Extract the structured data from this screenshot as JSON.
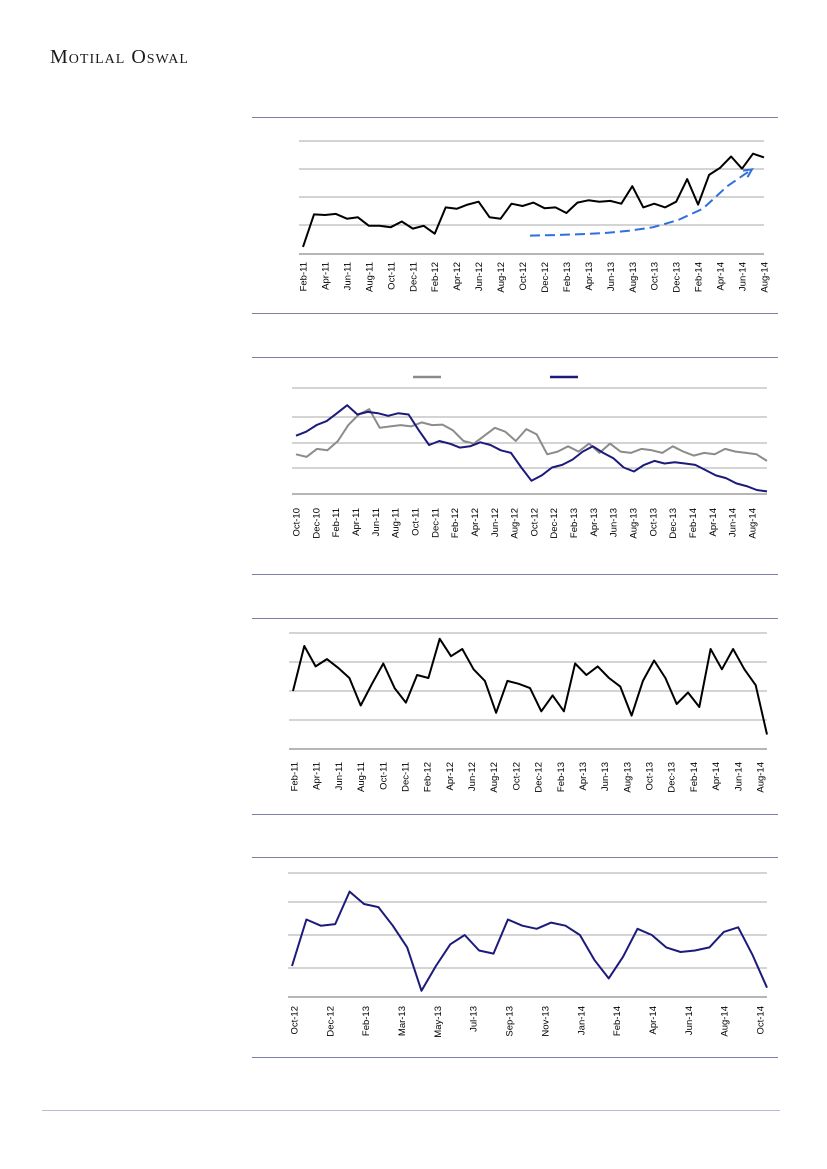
{
  "header": {
    "brand": "Motilal Oswal"
  },
  "colors": {
    "rule": "#7a7fa8",
    "grid": "#a9a9a9",
    "black_line": "#000000",
    "navy_line": "#1c1a7a",
    "grey_line": "#8c8c8c",
    "trend_arrow": "#2f6fe0"
  },
  "chart_data": [
    {
      "type": "line",
      "x_ticks": [
        "Feb-11",
        "Apr-11",
        "Jun-11",
        "Aug-11",
        "Oct-11",
        "Dec-11",
        "Feb-12",
        "Apr-12",
        "Jun-12",
        "Aug-12",
        "Oct-12",
        "Dec-12",
        "Feb-13",
        "Apr-13",
        "Jun-13",
        "Aug-13",
        "Oct-13",
        "Dec-13",
        "Feb-14",
        "Apr-14",
        "Jun-14",
        "Aug-14"
      ],
      "grid": true,
      "ylim": [
        0,
        4
      ],
      "series": [
        {
          "values": [
            0.25,
            1.4,
            1.38,
            1.42,
            1.25,
            1.3,
            1.0,
            1.0,
            0.95,
            1.15,
            0.9,
            1.0,
            0.72,
            1.65,
            1.6,
            1.75,
            1.85,
            1.3,
            1.25,
            1.78,
            1.7,
            1.82,
            1.62,
            1.65,
            1.45,
            1.82,
            1.9,
            1.85,
            1.88,
            1.78,
            2.4,
            1.65,
            1.78,
            1.65,
            1.85,
            2.65,
            1.75,
            2.8,
            3.05,
            3.45,
            3.02,
            3.55,
            3.42
          ]
        },
        {
          "style": "dashed-arrow",
          "values": [
            0.65,
            0.67,
            0.7,
            0.74,
            0.82,
            0.95,
            1.2,
            1.6,
            2.4,
            3.0
          ]
        }
      ]
    },
    {
      "type": "line",
      "x_ticks": [
        "Oct-10",
        "Dec-10",
        "Feb-11",
        "Apr-11",
        "Jun-11",
        "Aug-11",
        "Oct-11",
        "Dec-11",
        "Feb-12",
        "Apr-12",
        "Jun-12",
        "Aug-12",
        "Oct-12",
        "Dec-12",
        "Feb-13",
        "Apr-13",
        "Jun-13",
        "Aug-13",
        "Oct-13",
        "Dec-13",
        "Feb-14",
        "Apr-14",
        "Jun-14",
        "Aug-14"
      ],
      "grid": true,
      "legend": "top",
      "ylim": [
        0,
        4
      ],
      "series": [
        {
          "color": "grey",
          "values": [
            1.5,
            1.4,
            1.7,
            1.65,
            2.0,
            2.6,
            3.0,
            3.2,
            2.5,
            2.55,
            2.6,
            2.55,
            2.7,
            2.6,
            2.62,
            2.4,
            2.0,
            1.9,
            2.2,
            2.5,
            2.35,
            2.0,
            2.45,
            2.25,
            1.5,
            1.6,
            1.8,
            1.6,
            1.9,
            1.55,
            1.9,
            1.6,
            1.55,
            1.7,
            1.65,
            1.55,
            1.8,
            1.6,
            1.45,
            1.55,
            1.5,
            1.7,
            1.6,
            1.55,
            1.5,
            1.25
          ]
        },
        {
          "color": "navy",
          "values": [
            2.2,
            2.35,
            2.6,
            2.75,
            3.05,
            3.35,
            3.0,
            3.1,
            3.05,
            2.95,
            3.05,
            3.0,
            2.4,
            1.85,
            2.0,
            1.9,
            1.75,
            1.8,
            1.95,
            1.85,
            1.65,
            1.55,
            1.0,
            0.5,
            0.7,
            1.0,
            1.1,
            1.3,
            1.6,
            1.8,
            1.55,
            1.35,
            1.0,
            0.85,
            1.1,
            1.25,
            1.15,
            1.2,
            1.15,
            1.1,
            0.9,
            0.7,
            0.6,
            0.4,
            0.3,
            0.15,
            0.1
          ]
        }
      ]
    },
    {
      "type": "line",
      "x_ticks": [
        "Feb-11",
        "Apr-11",
        "Jun-11",
        "Aug-11",
        "Oct-11",
        "Dec-11",
        "Feb-12",
        "Apr-12",
        "Jun-12",
        "Aug-12",
        "Oct-12",
        "Dec-12",
        "Feb-13",
        "Apr-13",
        "Jun-13",
        "Aug-13",
        "Oct-13",
        "Dec-13",
        "Feb-14",
        "Apr-14",
        "Jun-14",
        "Aug-14"
      ],
      "grid": true,
      "ylim": [
        0,
        4
      ],
      "series": [
        {
          "color": "black",
          "values": [
            2.0,
            3.55,
            2.85,
            3.1,
            2.8,
            2.45,
            1.5,
            2.25,
            2.95,
            2.1,
            1.6,
            2.55,
            2.45,
            3.8,
            3.2,
            3.45,
            2.75,
            2.35,
            1.25,
            2.35,
            2.25,
            2.1,
            1.3,
            1.85,
            1.3,
            2.95,
            2.55,
            2.85,
            2.45,
            2.15,
            1.15,
            2.35,
            3.05,
            2.45,
            1.55,
            1.95,
            1.45,
            3.45,
            2.75,
            3.45,
            2.75,
            2.2,
            0.5
          ]
        }
      ]
    },
    {
      "type": "line",
      "x_ticks": [
        "Oct-12",
        "Dec-12",
        "Feb-13",
        "Mar-13",
        "May-13",
        "Jul-13",
        "Sep-13",
        "Nov-13",
        "Jan-14",
        "Feb-14",
        "Apr-14",
        "Jun-14",
        "Aug-14",
        "Oct-14"
      ],
      "grid": true,
      "ylim": [
        0,
        4
      ],
      "series": [
        {
          "color": "navy",
          "values": [
            1.0,
            2.5,
            2.3,
            2.35,
            3.4,
            3.0,
            2.9,
            2.3,
            1.6,
            0.2,
            1.0,
            1.7,
            2.0,
            1.5,
            1.4,
            2.5,
            2.3,
            2.2,
            2.4,
            2.3,
            2.0,
            1.2,
            0.6,
            1.3,
            2.2,
            2.0,
            1.6,
            1.45,
            1.5,
            1.6,
            2.1,
            2.25,
            1.35,
            0.3
          ]
        }
      ]
    }
  ]
}
